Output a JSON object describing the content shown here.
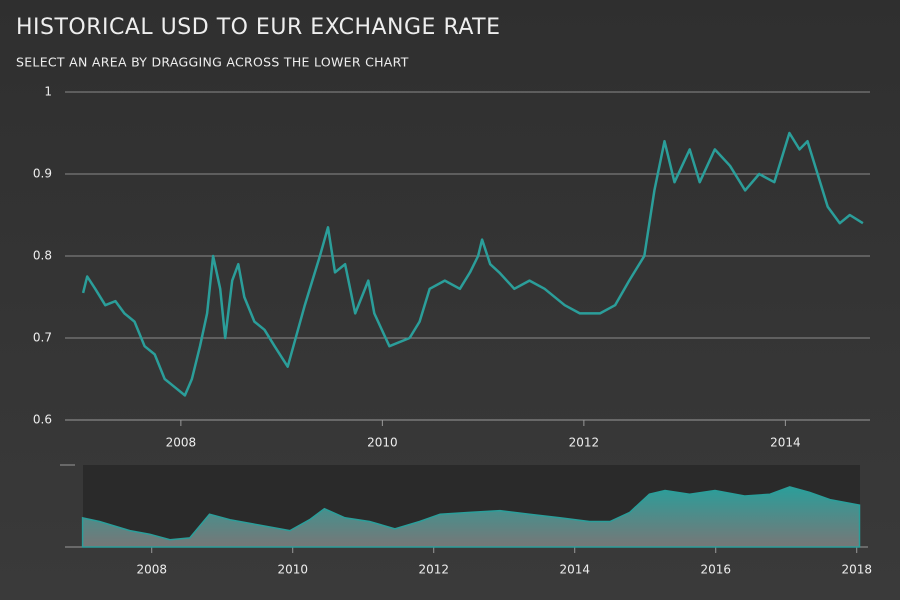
{
  "chart_data": [
    {
      "type": "line",
      "title": "HISTORICAL USD TO EUR EXCHANGE RATE",
      "subtitle": "SELECT AN AREA BY DRAGGING ACROSS THE LOWER CHART",
      "color": "#2b9e9a",
      "grid": true,
      "x": [
        2007.03,
        2007.07,
        2007.15,
        2007.25,
        2007.35,
        2007.44,
        2007.54,
        2007.64,
        2007.74,
        2007.84,
        2007.94,
        2008.04,
        2008.11,
        2008.19,
        2008.26,
        2008.32,
        2008.39,
        2008.44,
        2008.51,
        2008.57,
        2008.63,
        2008.73,
        2008.83,
        2008.93,
        2009.06,
        2009.23,
        2009.38,
        2009.46,
        2009.53,
        2009.63,
        2009.73,
        2009.86,
        2009.92,
        2010.07,
        2010.27,
        2010.37,
        2010.47,
        2010.62,
        2010.77,
        2010.87,
        2010.95,
        2010.99,
        2011.07,
        2011.16,
        2011.31,
        2011.46,
        2011.61,
        2011.81,
        2011.96,
        2012.16,
        2012.31,
        2012.45,
        2012.6,
        2012.7,
        2012.8,
        2012.9,
        2013.05,
        2013.15,
        2013.3,
        2013.45,
        2013.6,
        2013.74,
        2013.89,
        2014.04,
        2014.14,
        2014.22,
        2014.32,
        2014.42,
        2014.54,
        2014.64,
        2014.77
      ],
      "values": [
        0.755,
        0.775,
        0.76,
        0.74,
        0.745,
        0.73,
        0.72,
        0.69,
        0.68,
        0.65,
        0.64,
        0.63,
        0.65,
        0.69,
        0.73,
        0.8,
        0.76,
        0.7,
        0.77,
        0.79,
        0.75,
        0.72,
        0.71,
        0.69,
        0.665,
        0.74,
        0.8,
        0.835,
        0.78,
        0.79,
        0.73,
        0.77,
        0.73,
        0.69,
        0.7,
        0.72,
        0.76,
        0.77,
        0.76,
        0.78,
        0.8,
        0.82,
        0.79,
        0.78,
        0.76,
        0.77,
        0.76,
        0.74,
        0.73,
        0.73,
        0.74,
        0.77,
        0.8,
        0.88,
        0.94,
        0.89,
        0.93,
        0.89,
        0.93,
        0.91,
        0.88,
        0.9,
        0.89,
        0.95,
        0.93,
        0.94,
        0.9,
        0.86,
        0.84,
        0.85,
        0.84
      ],
      "xlim": [
        2006.85,
        2014.84
      ],
      "xticks": [
        2008,
        2010,
        2012,
        2014
      ],
      "ylim": [
        0.6,
        1
      ],
      "yticks": [
        0.6,
        0.7,
        0.8,
        0.9,
        1
      ]
    },
    {
      "type": "area",
      "color": "#2b9e9a",
      "x": [
        2007.02,
        2007.26,
        2007.69,
        2007.97,
        2008.26,
        2008.54,
        2008.82,
        2009.11,
        2009.53,
        2009.96,
        2010.24,
        2010.45,
        2010.74,
        2011.09,
        2011.45,
        2011.8,
        2012.09,
        2012.51,
        2012.94,
        2013.36,
        2013.79,
        2014.21,
        2014.5,
        2014.78,
        2015.06,
        2015.28,
        2015.63,
        2015.99,
        2016.41,
        2016.77,
        2017.05,
        2017.33,
        2017.62,
        2018.04
      ],
      "values": [
        0.71,
        0.69,
        0.64,
        0.62,
        0.59,
        0.6,
        0.73,
        0.7,
        0.67,
        0.64,
        0.7,
        0.76,
        0.71,
        0.69,
        0.65,
        0.69,
        0.73,
        0.74,
        0.75,
        0.73,
        0.71,
        0.69,
        0.69,
        0.74,
        0.84,
        0.86,
        0.84,
        0.86,
        0.83,
        0.84,
        0.88,
        0.85,
        0.81,
        0.78
      ],
      "xlim": [
        2006.77,
        2018.16
      ],
      "xticks": [
        2008,
        2010,
        2012,
        2014,
        2016,
        2018
      ],
      "ylim": [
        0.55,
        1.0
      ]
    }
  ]
}
